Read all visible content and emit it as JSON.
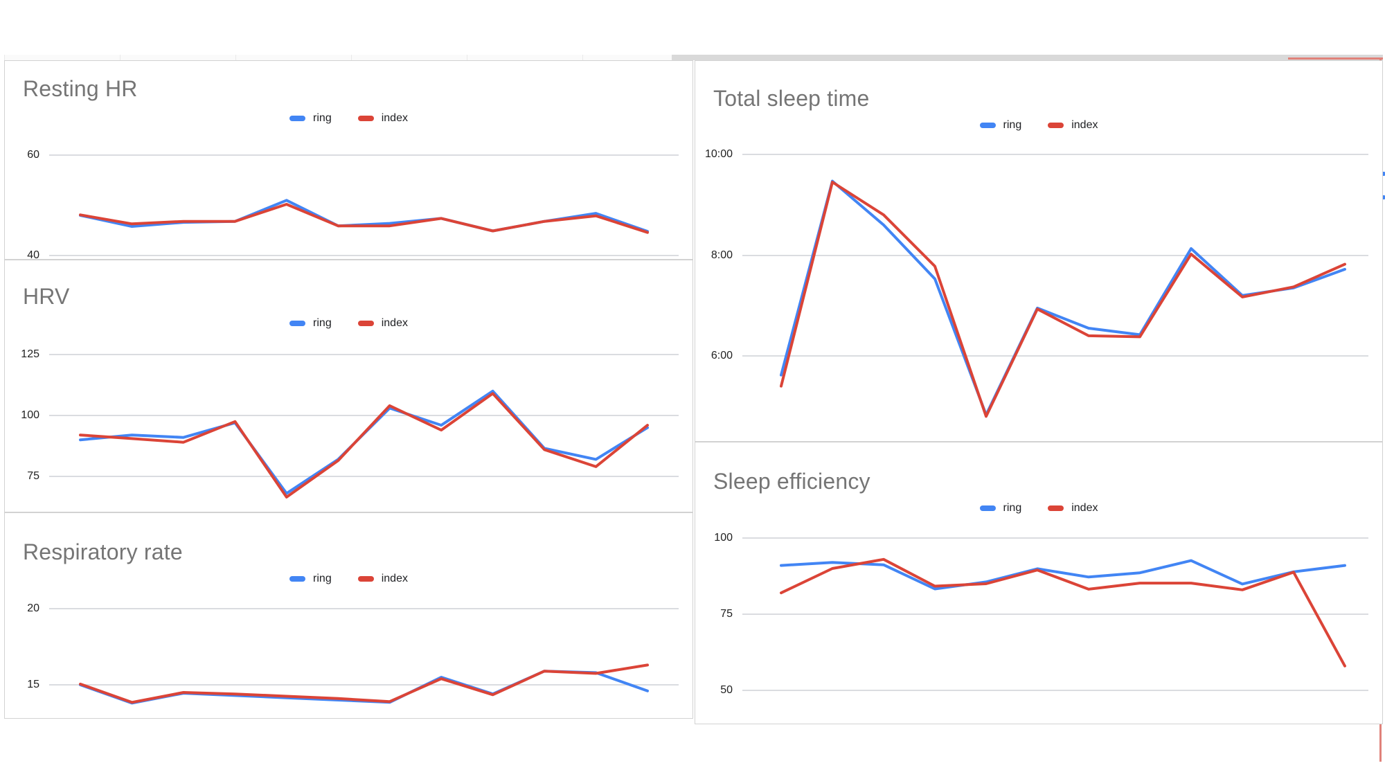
{
  "page": {
    "background": "#ffffff",
    "description_visible_text_only": true
  },
  "colors": {
    "ring": "#4285f4",
    "index": "#db4437",
    "title": "#757575",
    "tick_label": "#1f1f1f",
    "gridline": "#dadce0",
    "adjacent_chart_edge": "#e0827a"
  },
  "chart_data": [
    {
      "title": "Resting HR",
      "type": "line",
      "legend_position": "top-center",
      "grid": true,
      "x": [
        1,
        2,
        3,
        4,
        5,
        6,
        7,
        8,
        9,
        10,
        11,
        12
      ],
      "yticks": [
        {
          "label": "60",
          "value": 60
        },
        {
          "label": "40",
          "value": 40
        }
      ],
      "ylim": [
        40,
        60
      ],
      "series": [
        {
          "name": "ring",
          "values": [
            48.0,
            45.8,
            46.6,
            46.8,
            51.0,
            45.9,
            46.4,
            47.4,
            44.9,
            46.8,
            48.4,
            44.8
          ]
        },
        {
          "name": "index",
          "values": [
            48.1,
            46.3,
            46.8,
            46.8,
            50.2,
            45.9,
            45.9,
            47.4,
            44.9,
            46.8,
            47.9,
            44.6
          ]
        }
      ]
    },
    {
      "title": "HRV",
      "type": "line",
      "legend_position": "top-center",
      "grid": true,
      "x": [
        1,
        2,
        3,
        4,
        5,
        6,
        7,
        8,
        9,
        10,
        11,
        12
      ],
      "yticks": [
        {
          "label": "125",
          "value": 125
        },
        {
          "label": "100",
          "value": 100
        },
        {
          "label": "75",
          "value": 75
        }
      ],
      "ylim": [
        65,
        125
      ],
      "series": [
        {
          "name": "ring",
          "values": [
            90.0,
            92.0,
            91.0,
            97.0,
            68.0,
            82.0,
            103.0,
            96.0,
            110.0,
            86.5,
            82.0,
            95.0
          ]
        },
        {
          "name": "index",
          "values": [
            92.0,
            90.5,
            89.0,
            97.5,
            66.5,
            81.5,
            104.0,
            94.0,
            109.0,
            86.0,
            79.0,
            96.0
          ]
        }
      ]
    },
    {
      "title": "Respiratory rate",
      "type": "line",
      "legend_position": "top-center",
      "grid": true,
      "x": [
        1,
        2,
        3,
        4,
        5,
        6,
        7,
        8,
        9,
        10,
        11,
        12
      ],
      "yticks": [
        {
          "label": "20",
          "value": 20
        },
        {
          "label": "15",
          "value": 15
        }
      ],
      "ylim": [
        13,
        20
      ],
      "series": [
        {
          "name": "ring",
          "values": [
            15.0,
            13.8,
            14.45,
            14.3,
            14.15,
            14.0,
            13.85,
            15.5,
            14.4,
            15.9,
            15.8,
            14.6
          ]
        },
        {
          "name": "index",
          "values": [
            15.05,
            13.85,
            14.5,
            14.4,
            14.25,
            14.1,
            13.9,
            15.4,
            14.35,
            15.9,
            15.75,
            16.3
          ]
        }
      ]
    },
    {
      "title": "Total sleep time",
      "type": "line",
      "legend_position": "top-center",
      "grid": true,
      "y_format": "h:mm",
      "x": [
        1,
        2,
        3,
        4,
        5,
        6,
        7,
        8,
        9,
        10,
        11,
        12
      ],
      "yticks": [
        {
          "label": "10:00",
          "value": 10
        },
        {
          "label": "8:00",
          "value": 8
        },
        {
          "label": "6:00",
          "value": 6
        }
      ],
      "ylim": [
        4.5,
        10
      ],
      "series": [
        {
          "name": "ring",
          "values": [
            5.62,
            9.47,
            8.6,
            7.53,
            4.83,
            6.95,
            6.55,
            6.42,
            8.13,
            7.2,
            7.35,
            7.72
          ],
          "values_hhmm": [
            "5:37",
            "9:28",
            "8:36",
            "7:32",
            "4:50",
            "6:57",
            "6:33",
            "6:25",
            "8:08",
            "7:12",
            "7:21",
            "7:43"
          ]
        },
        {
          "name": "index",
          "values": [
            5.4,
            9.45,
            8.8,
            7.78,
            4.8,
            6.93,
            6.4,
            6.38,
            8.02,
            7.17,
            7.37,
            7.82
          ],
          "values_hhmm": [
            "5:24",
            "9:27",
            "8:48",
            "7:47",
            "4:48",
            "6:56",
            "6:24",
            "6:23",
            "8:01",
            "7:10",
            "7:22",
            "7:49"
          ]
        }
      ]
    },
    {
      "title": "Sleep efficiency",
      "type": "line",
      "legend_position": "top-center",
      "grid": true,
      "x": [
        1,
        2,
        3,
        4,
        5,
        6,
        7,
        8,
        9,
        10,
        11,
        12
      ],
      "yticks": [
        {
          "label": "100",
          "value": 100
        },
        {
          "label": "75",
          "value": 75
        },
        {
          "label": "50",
          "value": 50
        }
      ],
      "ylim": [
        50,
        100
      ],
      "series": [
        {
          "name": "ring",
          "values": [
            91.0,
            92.0,
            91.2,
            83.3,
            85.6,
            89.9,
            87.2,
            88.6,
            92.6,
            84.9,
            88.9,
            91.0
          ]
        },
        {
          "name": "index",
          "values": [
            82.0,
            90.0,
            93.0,
            84.2,
            85.0,
            89.5,
            83.2,
            85.2,
            85.2,
            83.0,
            88.8,
            58.0
          ]
        }
      ]
    }
  ]
}
